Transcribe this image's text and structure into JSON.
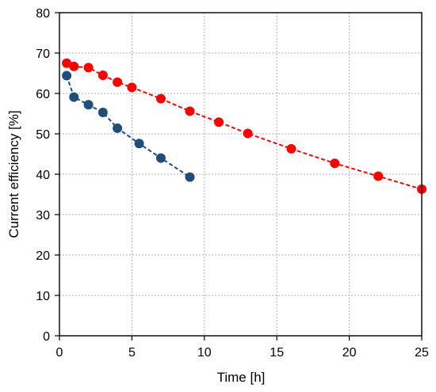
{
  "chart_data": {
    "type": "line",
    "title": "",
    "xlabel": "Time [h]",
    "ylabel": "Current efficiency [%]",
    "xlim": [
      0,
      25
    ],
    "ylim": [
      0,
      80
    ],
    "x_ticks": [
      0,
      5,
      10,
      15,
      20,
      25
    ],
    "y_ticks": [
      0,
      10,
      20,
      30,
      40,
      50,
      60,
      70,
      80
    ],
    "grid": true,
    "legend": "none",
    "series": [
      {
        "color": "#ff0000",
        "line_style": "dashed",
        "marker": "circle",
        "x": [
          0.5,
          1,
          2,
          3,
          4,
          5,
          7,
          9,
          11,
          13,
          16,
          19,
          22,
          25
        ],
        "y": [
          67.5,
          66.7,
          66.4,
          64.5,
          62.8,
          61.5,
          58.7,
          55.6,
          52.9,
          50.1,
          46.3,
          42.7,
          39.5,
          36.3
        ]
      },
      {
        "color": "#1f4e79",
        "line_style": "dashed",
        "marker": "circle",
        "x": [
          0.5,
          1,
          2,
          3,
          4,
          5.5,
          7,
          9
        ],
        "y": [
          64.4,
          59.1,
          57.2,
          55.3,
          51.4,
          47.6,
          44.0,
          39.3
        ]
      }
    ]
  }
}
